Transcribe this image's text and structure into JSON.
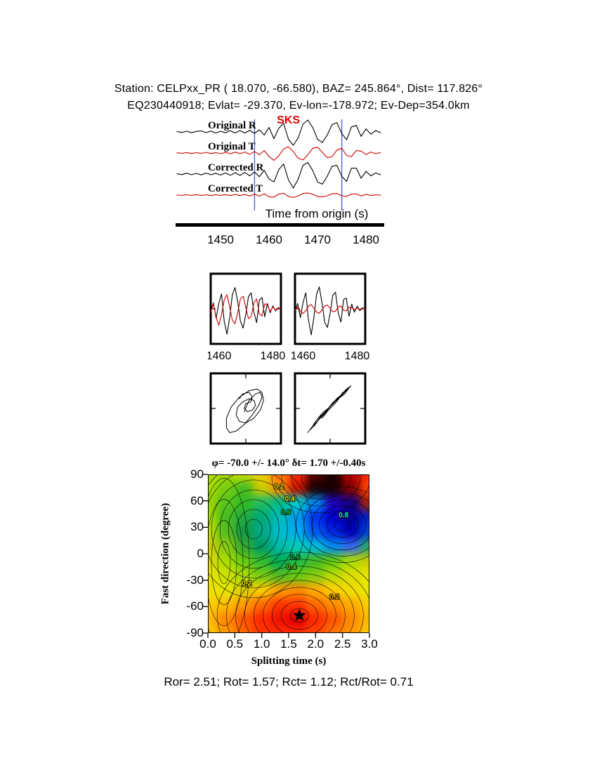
{
  "header": {
    "line1": "Station: CELPxx_PR (  18.070,  -66.580), BAZ=  245.864°, Dist=  117.826°",
    "line2": "EQ230440918; Evlat= -29.370, Ev-lon=-178.972; Ev-Dep=354.0km"
  },
  "footer": {
    "stats": "Ror= 2.51; Rot= 1.57; Rct= 1.12; Rct/Rot= 0.71"
  },
  "colors": {
    "trace_black": "#000000",
    "trace_red": "#cc0000",
    "window_marker": "#5566cc",
    "phase_label_color": "#dd0000"
  },
  "chart_data": [
    {
      "id": "seismograms",
      "type": "line",
      "xlabel": "Time from origin (s)",
      "x_start": 1441,
      "x_step": 1,
      "x_range": [
        1441,
        1483
      ],
      "x_ticks": [
        1450,
        1460,
        1470,
        1480
      ],
      "phase_label": "SKS",
      "phase_label_time": 1464,
      "window": [
        1457,
        1475
      ],
      "traces": [
        {
          "label": "Original R",
          "color": "#000000",
          "values": [
            0.03,
            -0.04,
            0.05,
            -0.06,
            0.04,
            0.07,
            -0.05,
            0.06,
            -0.08,
            0.05,
            -0.06,
            0.09,
            -0.07,
            0.1,
            -0.08,
            0.12,
            -0.1,
            0.15,
            -0.22,
            0.32,
            -0.48,
            0.26,
            0.62,
            -0.52,
            -0.95,
            -0.42,
            0.55,
            0.85,
            0.32,
            -0.52,
            -0.75,
            -0.22,
            0.52,
            0.66,
            -0.12,
            -0.56,
            0.36,
            0.46,
            -0.32,
            0.22,
            -0.16,
            0.1,
            -0.06
          ]
        },
        {
          "label": "Original T",
          "color": "#cc0000",
          "values": [
            0.02,
            -0.03,
            0.04,
            -0.05,
            0.03,
            -0.04,
            0.06,
            -0.05,
            0.04,
            -0.06,
            0.05,
            -0.07,
            0.08,
            -0.06,
            0.09,
            -0.11,
            0.13,
            -0.16,
            0.22,
            -0.32,
            -0.66,
            -0.26,
            0.36,
            0.56,
            0.12,
            -0.46,
            -0.62,
            -0.16,
            0.42,
            0.52,
            0.06,
            -0.42,
            -0.32,
            0.26,
            0.42,
            -0.22,
            -0.32,
            0.22,
            0.16,
            -0.13,
            0.09,
            -0.06,
            0.04
          ]
        },
        {
          "label": "Corrected R",
          "color": "#000000",
          "values": [
            0.02,
            -0.04,
            0.06,
            -0.05,
            0.05,
            -0.06,
            0.07,
            -0.05,
            0.06,
            -0.07,
            0.08,
            -0.09,
            0.1,
            -0.1,
            0.12,
            -0.13,
            0.15,
            -0.19,
            0.26,
            -0.36,
            -0.56,
            0.32,
            0.72,
            -0.42,
            -1.0,
            -0.36,
            0.62,
            0.82,
            0.26,
            -0.56,
            -0.72,
            -0.16,
            0.56,
            0.62,
            -0.16,
            -0.52,
            0.42,
            0.42,
            -0.3,
            0.19,
            -0.13,
            0.08,
            -0.05
          ]
        },
        {
          "label": "Corrected T",
          "color": "#cc0000",
          "values": [
            0.01,
            -0.02,
            0.02,
            -0.02,
            0.03,
            -0.02,
            0.02,
            -0.03,
            0.02,
            -0.02,
            0.03,
            -0.03,
            0.04,
            -0.03,
            0.04,
            -0.05,
            0.05,
            -0.06,
            0.08,
            -0.1,
            -0.12,
            0.06,
            0.11,
            -0.08,
            -0.14,
            -0.06,
            0.1,
            0.12,
            0.05,
            -0.08,
            -0.11,
            -0.04,
            0.08,
            0.1,
            -0.04,
            -0.08,
            0.06,
            0.07,
            -0.05,
            0.04,
            -0.03,
            0.02,
            -0.01
          ]
        }
      ]
    },
    {
      "id": "windowed-pairs",
      "type": "line",
      "panels": [
        {
          "name": "original-window",
          "x_range": [
            1457,
            1483
          ],
          "x_ticks": [
            1460,
            1480
          ],
          "series": [
            {
              "name": "R",
              "color": "#000000",
              "values": [
                -0.1,
                0.22,
                -0.36,
                0.2,
                0.56,
                -0.46,
                -0.95,
                -0.36,
                0.52,
                0.8,
                0.26,
                -0.46,
                -0.72,
                -0.2,
                0.46,
                0.6,
                -0.12,
                -0.52,
                0.32,
                0.42,
                -0.3,
                0.2,
                -0.15,
                0.11,
                -0.08,
                0.05,
                -0.03
              ]
            },
            {
              "name": "T",
              "color": "#cc0000",
              "values": [
                -0.12,
                0.18,
                -0.3,
                -0.62,
                -0.22,
                0.33,
                0.53,
                0.09,
                -0.43,
                -0.56,
                -0.13,
                0.37,
                0.47,
                0.05,
                -0.37,
                -0.29,
                0.23,
                0.37,
                -0.19,
                -0.27,
                0.19,
                0.14,
                -0.1,
                0.07,
                -0.05,
                0.04,
                -0.02
              ]
            }
          ]
        },
        {
          "name": "corrected-window",
          "x_range": [
            1457,
            1483
          ],
          "x_ticks": [
            1460,
            1480
          ],
          "series": [
            {
              "name": "R",
              "color": "#000000",
              "values": [
                -0.08,
                0.2,
                -0.33,
                0.24,
                0.6,
                -0.42,
                -0.98,
                -0.33,
                0.56,
                0.82,
                0.22,
                -0.5,
                -0.7,
                -0.16,
                0.5,
                0.62,
                -0.15,
                -0.5,
                0.35,
                0.4,
                -0.28,
                0.18,
                -0.13,
                0.1,
                -0.07,
                0.04,
                -0.02
              ]
            },
            {
              "name": "T",
              "color": "#cc0000",
              "values": [
                -0.04,
                0.06,
                -0.09,
                -0.18,
                -0.07,
                0.1,
                0.16,
                0.03,
                -0.13,
                -0.17,
                -0.04,
                0.11,
                0.14,
                0.02,
                -0.11,
                -0.09,
                0.07,
                0.11,
                -0.06,
                -0.08,
                0.06,
                0.04,
                -0.03,
                0.02,
                -0.02,
                0.01,
                -0.01
              ]
            }
          ]
        }
      ]
    },
    {
      "id": "particle-motion",
      "type": "scatter",
      "panels": [
        {
          "name": "original-particle-motion",
          "points": [
            [
              -0.05,
              -0.1
            ],
            [
              0.1,
              0.25
            ],
            [
              0.3,
              0.45
            ],
            [
              0.45,
              0.5
            ],
            [
              0.5,
              0.35
            ],
            [
              0.4,
              0.1
            ],
            [
              0.2,
              -0.2
            ],
            [
              -0.05,
              -0.5
            ],
            [
              -0.3,
              -0.7
            ],
            [
              -0.5,
              -0.75
            ],
            [
              -0.6,
              -0.6
            ],
            [
              -0.6,
              -0.3
            ],
            [
              -0.45,
              0.05
            ],
            [
              -0.2,
              0.35
            ],
            [
              0.1,
              0.55
            ],
            [
              0.35,
              0.6
            ],
            [
              0.5,
              0.5
            ],
            [
              0.55,
              0.25
            ],
            [
              0.45,
              -0.05
            ],
            [
              0.25,
              -0.3
            ],
            [
              0.0,
              -0.45
            ],
            [
              -0.2,
              -0.4
            ],
            [
              -0.3,
              -0.2
            ],
            [
              -0.25,
              0.05
            ],
            [
              -0.1,
              0.2
            ],
            [
              0.1,
              0.3
            ],
            [
              0.25,
              0.25
            ],
            [
              0.3,
              0.1
            ],
            [
              0.2,
              -0.05
            ],
            [
              0.05,
              -0.1
            ],
            [
              -0.05,
              0.0
            ],
            [
              0.0,
              0.15
            ],
            [
              0.15,
              0.2
            ],
            [
              0.2,
              0.35
            ],
            [
              0.1,
              0.5
            ],
            [
              -0.1,
              0.45
            ],
            [
              -0.2,
              0.3
            ]
          ]
        },
        {
          "name": "corrected-particle-motion",
          "points": [
            [
              -0.7,
              -0.75
            ],
            [
              -0.5,
              -0.5
            ],
            [
              -0.3,
              -0.3
            ],
            [
              -0.1,
              -0.05
            ],
            [
              0.1,
              0.15
            ],
            [
              0.3,
              0.35
            ],
            [
              0.5,
              0.55
            ],
            [
              0.65,
              0.7
            ],
            [
              0.5,
              0.6
            ],
            [
              0.3,
              0.35
            ],
            [
              0.1,
              0.2
            ],
            [
              -0.1,
              -0.05
            ],
            [
              -0.3,
              -0.25
            ],
            [
              -0.5,
              -0.55
            ],
            [
              -0.35,
              -0.35
            ],
            [
              -0.15,
              -0.1
            ],
            [
              0.05,
              0.1
            ],
            [
              0.25,
              0.3
            ],
            [
              0.45,
              0.45
            ],
            [
              0.6,
              0.65
            ],
            [
              0.45,
              0.5
            ],
            [
              0.2,
              0.3
            ],
            [
              0.0,
              0.05
            ],
            [
              -0.2,
              -0.2
            ],
            [
              -0.4,
              -0.4
            ],
            [
              -0.6,
              -0.65
            ],
            [
              -0.45,
              -0.4
            ],
            [
              -0.25,
              -0.15
            ],
            [
              0.0,
              0.05
            ],
            [
              0.2,
              0.25
            ],
            [
              0.4,
              0.5
            ],
            [
              0.55,
              0.6
            ],
            [
              0.35,
              0.4
            ],
            [
              0.15,
              0.15
            ],
            [
              -0.05,
              -0.05
            ],
            [
              -0.25,
              -0.3
            ]
          ]
        }
      ]
    },
    {
      "id": "splitting-parameter-map",
      "type": "heatmap",
      "title": "φ= -70.0 +/- 14.0°  δt= 1.70 +/-0.40s",
      "xlabel": "Splitting time (s)",
      "ylabel": "Fast direction (degree)",
      "xlim": [
        0,
        3
      ],
      "ylim": [
        -90,
        90
      ],
      "x_ticks": [
        "0.0",
        "0.5",
        "1.0",
        "1.5",
        "2.0",
        "2.5",
        "3.0"
      ],
      "y_ticks": [
        90,
        60,
        30,
        0,
        -30,
        -60,
        -90
      ],
      "best_fit": {
        "x": 1.7,
        "y": -70,
        "marker": "star"
      },
      "contour_labels": [
        {
          "text": "0.2",
          "x": 1.32,
          "y": 76,
          "color": "#ffee00"
        },
        {
          "text": "0.4",
          "x": 1.52,
          "y": 62,
          "color": "#ddee00"
        },
        {
          "text": "0.6",
          "x": 1.45,
          "y": 47,
          "color": "#00dd55"
        },
        {
          "text": "0.8",
          "x": 2.52,
          "y": 44,
          "color": "#00eeee"
        },
        {
          "text": "0.6",
          "x": 1.62,
          "y": -4,
          "color": "#00cc44"
        },
        {
          "text": "0.4",
          "x": 1.55,
          "y": -15,
          "color": "#66dd00"
        },
        {
          "text": "0.2",
          "x": 0.72,
          "y": -34,
          "color": "#ffee00"
        },
        {
          "text": "0.2",
          "x": 2.35,
          "y": -49,
          "color": "#ffaa00"
        }
      ],
      "contour_centers": [
        {
          "x": 1.7,
          "y": -70,
          "rings": 9,
          "rx_step": 13,
          "ry_step": 10
        },
        {
          "x": 2.5,
          "y": 33,
          "rings": 6,
          "rx_step": 11,
          "ry_step": 9
        },
        {
          "x": 0.85,
          "y": 28,
          "rings": 7,
          "rx_step": 12,
          "ry_step": 14
        },
        {
          "x": 2.1,
          "y": 86,
          "rings": 5,
          "rx_step": 14,
          "ry_step": 10
        },
        {
          "x": 0.3,
          "y": -10,
          "rings": 4,
          "rx_step": 9,
          "ry_step": 30
        }
      ],
      "color_grid": [
        [
          "#aadd00",
          "#aadd00",
          "#ccdd00",
          "#eecc00",
          "#ff7700",
          "#ff2a00",
          "#550000",
          "#1a0000",
          "#bb0000",
          "#ff2a00"
        ],
        [
          "#aadd00",
          "#77cc11",
          "#44bb22",
          "#cccc00",
          "#ff8800",
          "#cc1100",
          "#1a0000",
          "#1a0000",
          "#880000",
          "#ff4400"
        ],
        [
          "#99d400",
          "#55c41c",
          "#33bb22",
          "#22bb66",
          "#00bb88",
          "#00cccc",
          "#0088ee",
          "#2200cc",
          "#110088",
          "#aa2200"
        ],
        [
          "#aadd00",
          "#44bb22",
          "#22aa44",
          "#00aa77",
          "#00bbbb",
          "#0099ee",
          "#0033ee",
          "#0000cc",
          "#000099",
          "#0022cc"
        ],
        [
          "#bbdd00",
          "#55bb22",
          "#119944",
          "#00aa88",
          "#00bbcc",
          "#00aaee",
          "#0055ee",
          "#0022dd",
          "#0000bb",
          "#0044dd"
        ],
        [
          "#cccc00",
          "#88cc11",
          "#33aa33",
          "#009966",
          "#00bbaa",
          "#00ccbb",
          "#00bbdd",
          "#0088ee",
          "#3366ee",
          "#22aa66"
        ],
        [
          "#dddd00",
          "#aadd00",
          "#66cc11",
          "#33bb33",
          "#00aa55",
          "#22bb44",
          "#44bb22",
          "#66cc11",
          "#aadd00",
          "#cccc00"
        ],
        [
          "#e6e600",
          "#cce000",
          "#aadd00",
          "#77cc11",
          "#55bb22",
          "#66cc11",
          "#88cc11",
          "#bbdd00",
          "#dddd00",
          "#e6e600"
        ],
        [
          "#eedd00",
          "#e6e600",
          "#ddcc00",
          "#ffcc00",
          "#ff9900",
          "#ff8800",
          "#ffaa00",
          "#ffcc00",
          "#eedd00",
          "#e6e600"
        ],
        [
          "#ffcc00",
          "#ffbb00",
          "#ff9900",
          "#ff6600",
          "#ff3300",
          "#ff3300",
          "#ff6600",
          "#ff8800",
          "#ffaa00",
          "#ffcc00"
        ],
        [
          "#ffbb00",
          "#ff8800",
          "#ff5500",
          "#ff2a00",
          "#ee1100",
          "#dd0000",
          "#ff2a00",
          "#ff5500",
          "#ff8800",
          "#ffbb00"
        ],
        [
          "#ffcc00",
          "#ff9900",
          "#ff6600",
          "#ff3300",
          "#ff2a00",
          "#ff2a00",
          "#ff4400",
          "#ff7700",
          "#ff9900",
          "#ffcc00"
        ]
      ]
    }
  ]
}
